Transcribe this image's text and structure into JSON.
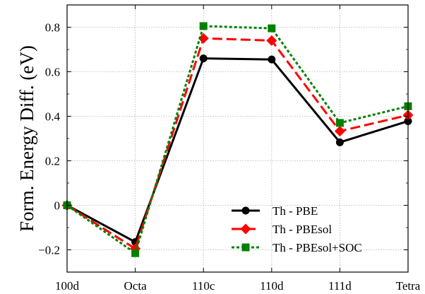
{
  "chart_data": {
    "type": "line",
    "title": "",
    "xlabel": "",
    "ylabel": "Form. Energy Diff. (eV)",
    "categories": [
      "100d",
      "Octa",
      "110c",
      "110d",
      "111d",
      "Tetra"
    ],
    "ylim": [
      -0.3,
      0.9
    ],
    "yticks": [
      -0.2,
      0,
      0.2,
      0.4,
      0.6,
      0.8
    ],
    "ytick_labels": [
      "−0.2",
      "0",
      "0.2",
      "0.4",
      "0.6",
      "0.8"
    ],
    "grid": true,
    "legend_position": "bottom-right",
    "series": [
      {
        "name": "Th - PBE",
        "color": "#000000",
        "line_style": "solid",
        "marker": "circle",
        "values": [
          0.0,
          -0.165,
          0.66,
          0.655,
          0.283,
          0.378
        ]
      },
      {
        "name": "Th - PBEsol",
        "color": "#ff0000",
        "line_style": "dashed",
        "marker": "diamond",
        "values": [
          0.0,
          -0.195,
          0.75,
          0.74,
          0.333,
          0.405
        ]
      },
      {
        "name": "Th - PBEsol+SOC",
        "color": "#008000",
        "line_style": "dotted",
        "marker": "square",
        "values": [
          0.0,
          -0.215,
          0.805,
          0.795,
          0.37,
          0.445
        ]
      }
    ]
  }
}
